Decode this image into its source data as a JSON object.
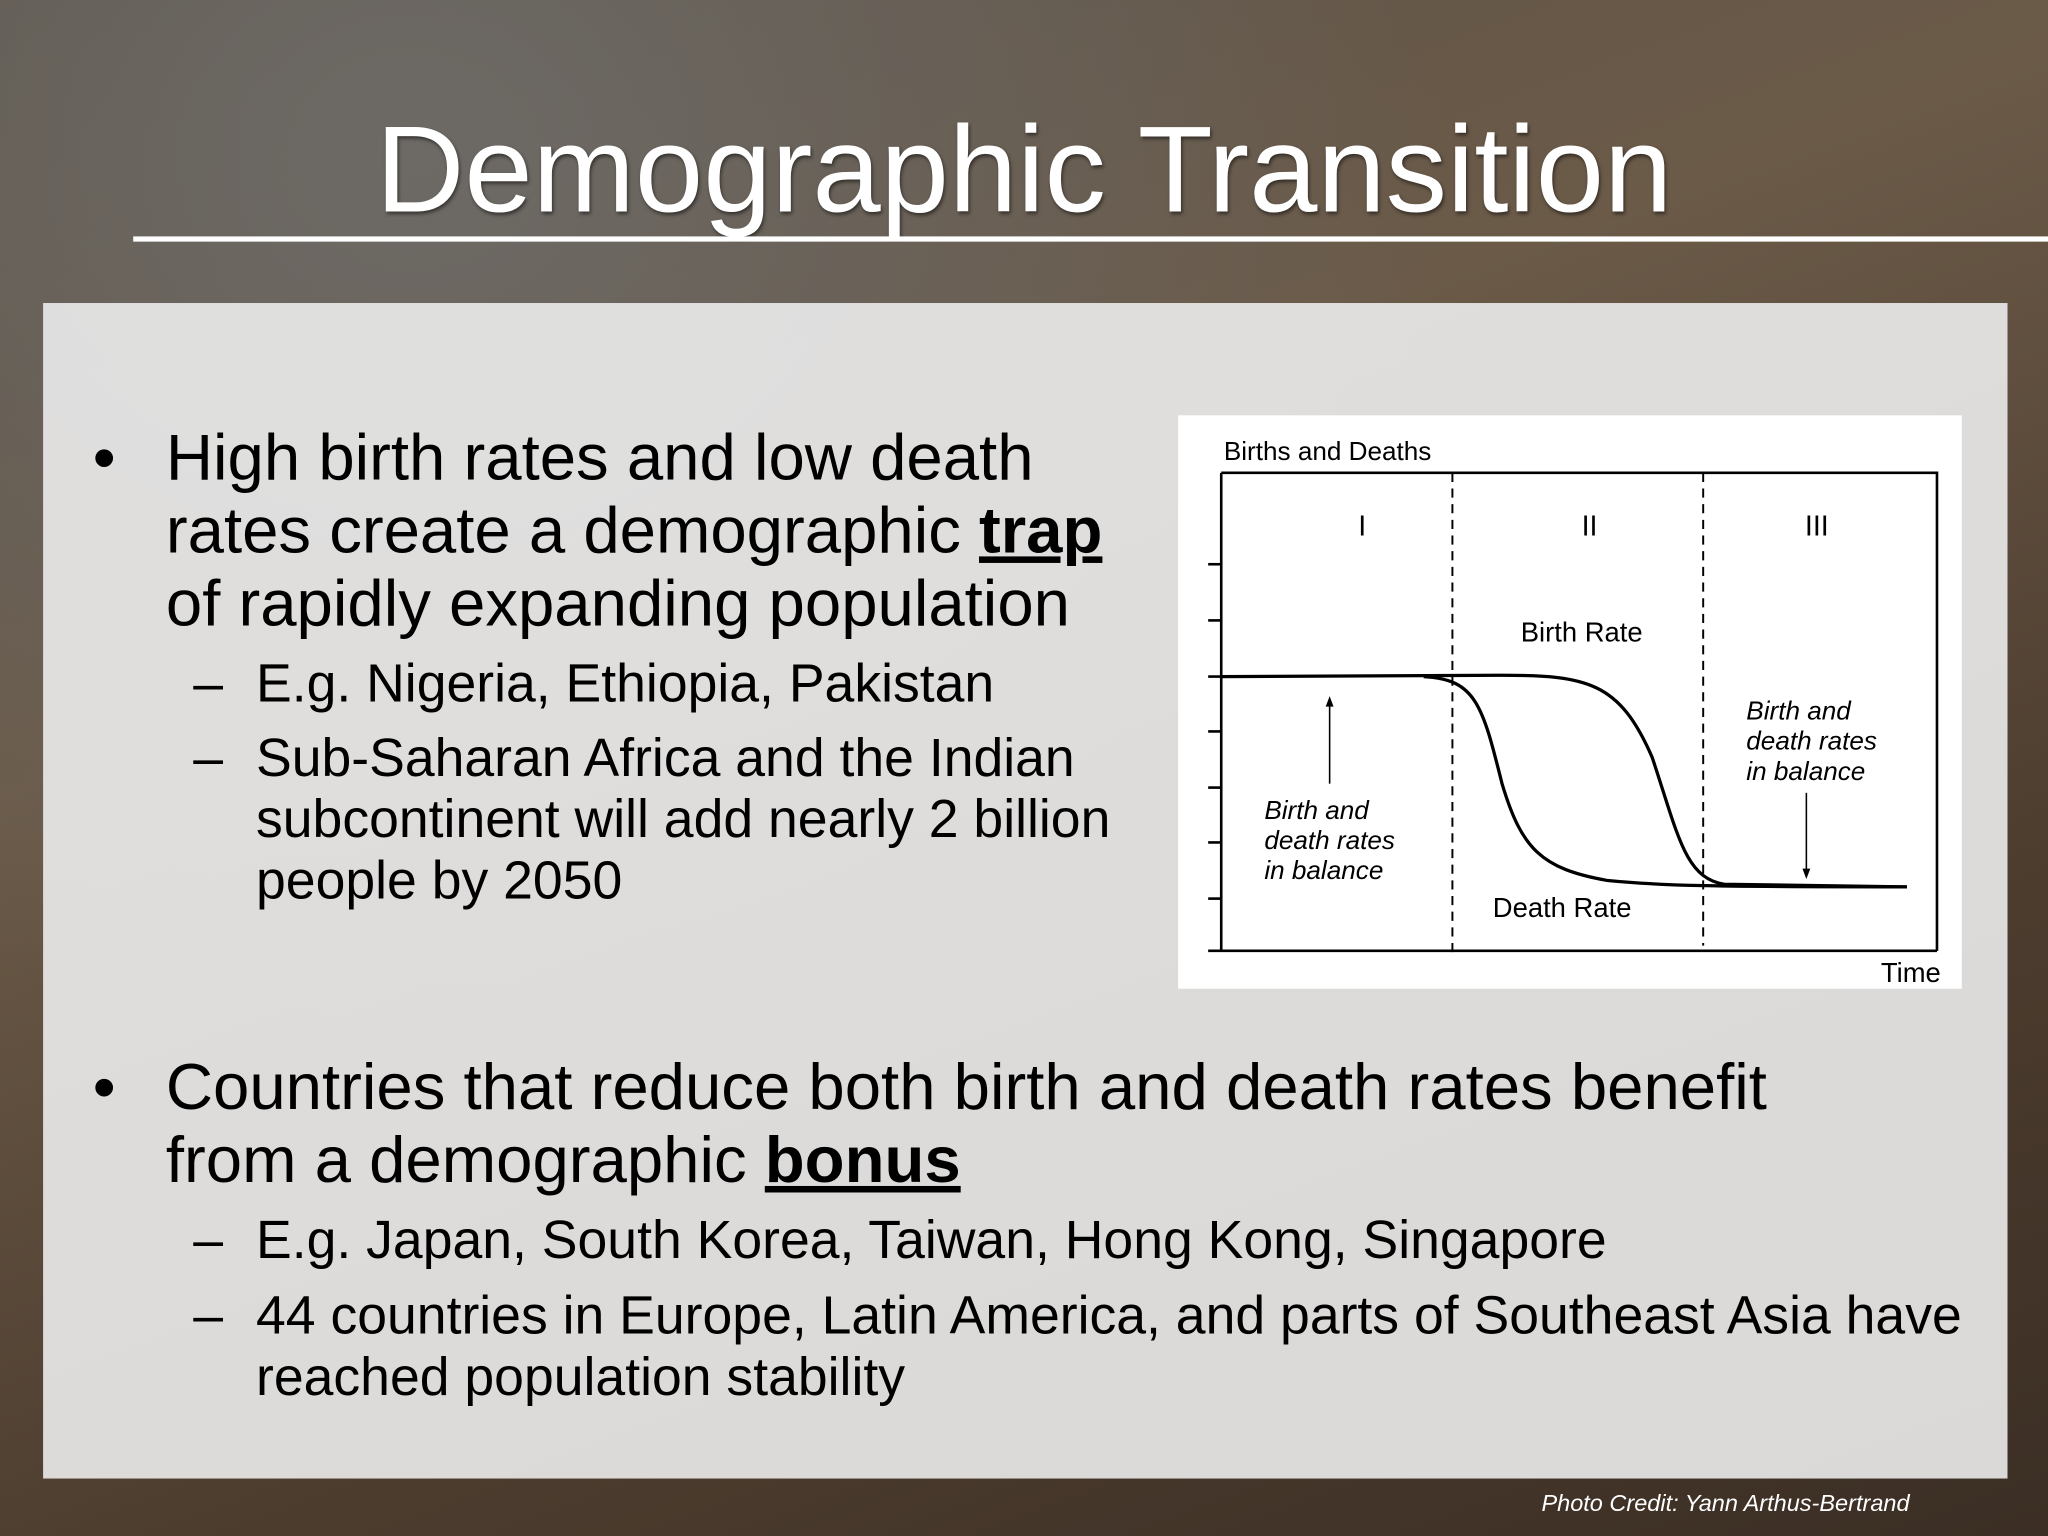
{
  "header": {
    "title": "Demographic Transition"
  },
  "bullets": [
    {
      "parts": [
        "High birth rates and low death rates create a demographic ",
        "trap",
        " of rapidly expanding population"
      ],
      "sub": [
        "E.g. Nigeria, Ethiopia, Pakistan",
        "Sub-Saharan Africa and the Indian subcontinent will add nearly 2 billion people by 2050"
      ]
    },
    {
      "parts": [
        "Countries that reduce both birth and death rates benefit from a demographic ",
        "bonus"
      ],
      "sub": [
        "E.g. Japan, South Korea, Taiwan, Hong Kong, Singapore",
        "44 countries in Europe, Latin America, and parts of Southeast Asia have reached population stability"
      ]
    }
  ],
  "diagram": {
    "y_label": "Births and Deaths",
    "x_label": "Time",
    "stages": [
      "I",
      "II",
      "III"
    ],
    "birth_label": "Birth Rate",
    "death_label": "Death Rate",
    "left_note": [
      "Birth and",
      "death rates",
      "in balance"
    ],
    "right_note": [
      "Birth and",
      "death rates",
      "in balance"
    ]
  },
  "footer": {
    "credit": "Photo Credit: Yann Arthus-Bertrand"
  }
}
